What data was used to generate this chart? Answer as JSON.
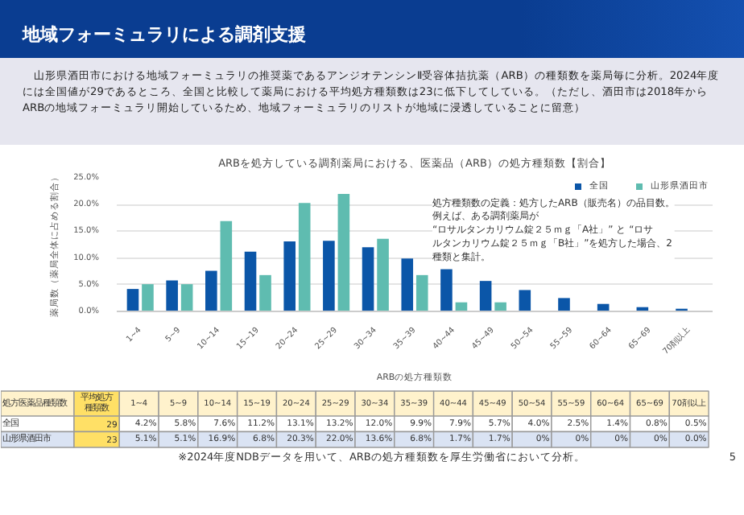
{
  "chart_data": {
    "type": "bar",
    "title": "ARBを処方している調剤薬局における、医薬品（ARB）の処方種類数【割合】",
    "xlabel": "ARBの処方種類数",
    "ylabel": "薬局数（薬局全体に占める割合）",
    "categories": [
      "1~4",
      "5~9",
      "10~14",
      "15~19",
      "20~24",
      "25~29",
      "30~34",
      "35~39",
      "40~44",
      "45~49",
      "50~54",
      "55~59",
      "60~64",
      "65~69",
      "70剤以上"
    ],
    "series": [
      {
        "name": "全国",
        "color": "#0b56a8",
        "values": [
          4.2,
          5.8,
          7.6,
          11.2,
          13.1,
          13.2,
          12.0,
          9.9,
          7.9,
          5.7,
          4.0,
          2.5,
          1.4,
          0.8,
          0.5
        ],
        "value_labels": [
          "4.2%",
          "5.8%",
          "7.6%",
          "11.2%",
          "13.1%",
          "13.2%",
          "12.0%",
          "9.9%",
          "7.9%",
          "5.7%",
          "4.0%",
          "2.5%",
          "1.4%",
          "0.8%",
          "0.5%"
        ]
      },
      {
        "name": "山形県酒田市",
        "color": "#5fbcb0",
        "values": [
          5.1,
          5.1,
          16.9,
          6.8,
          20.3,
          22.0,
          13.6,
          6.8,
          1.7,
          1.7,
          0,
          0,
          0,
          0,
          0.0
        ],
        "value_labels": [
          "5.1%",
          "5.1%",
          "16.9%",
          "6.8%",
          "20.3%",
          "22.0%",
          "13.6%",
          "6.8%",
          "1.7%",
          "1.7%",
          "0%",
          "0%",
          "0%",
          "0%",
          "0.0%"
        ]
      }
    ],
    "ylim": [
      0,
      25
    ],
    "yticks": [
      {
        "value": 0,
        "label": "0.0%"
      },
      {
        "value": 5,
        "label": "5.0%"
      },
      {
        "value": 10,
        "label": "10.0%"
      },
      {
        "value": 15,
        "label": "15.0%"
      },
      {
        "value": 20,
        "label": "20.0%"
      },
      {
        "value": 25,
        "label": "25.0%"
      }
    ],
    "grid": "y",
    "legend": "top right",
    "data_labels": true,
    "annotations": [
      "地域フォーミュラリによる調剤支援",
      "　山形県酒田市における地域フォーミュラリの推奨薬であるアンジオテンシンⅡ受容体拮抗薬（ARB）の種類数を薬局毎に分析。2024年度には全国値が29であるところ、全国と比較して薬局における平均処方種類数は23に低下してしている。（ただし、酒田市は2018年からARBの地域フォーミュラリ開始しているため、地域フォーミュラリのリストが地域に浸透していることに留意）",
      "処方種類数の定義：処方したARB（販売名）の品目数。例えば、ある調剤薬局が “ロサルタンカリウム錠２５ｍｇ「A社」” と “ロサルタンカリウム錠２５ｍｇ「B社」”を処方した場合、2種類と集計。",
      "※2024年度NDBデータを用いて、ARBの処方種類数を厚生労働省において分析。",
      "5",
      "処方医薬品種類数",
      "平均処方種類数",
      "29",
      "23"
    ]
  }
}
